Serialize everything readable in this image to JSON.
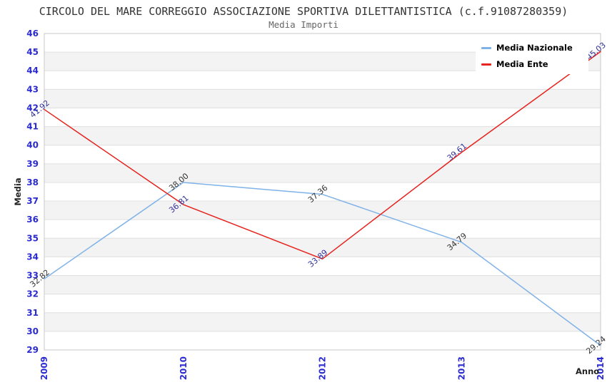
{
  "header": {
    "title": "CIRCOLO DEL MARE CORREGGIO ASSOCIAZIONE SPORTIVA DILETTANTISTICA (c.f.91087280359)",
    "subtitle": "Media Importi"
  },
  "chart_data": {
    "type": "line",
    "categories": [
      "2009",
      "2010",
      "2012",
      "2013",
      "2014"
    ],
    "series": [
      {
        "name": "Media Nazionale",
        "color": "#7fb2e8",
        "label_color": "#333333",
        "values": [
          32.82,
          38.0,
          37.36,
          34.79,
          29.24
        ]
      },
      {
        "name": "Media Ente",
        "color": "#e6231e",
        "label_color": "#333399",
        "values": [
          41.92,
          36.81,
          33.89,
          39.61,
          45.03
        ]
      }
    ],
    "xlabel": "Anno",
    "ylabel": "Media",
    "ylim": [
      29,
      46
    ],
    "ytick_step": 1,
    "grid": true,
    "legend_position": "top-right",
    "band_colors": [
      "#ffffff",
      "#f3f3f3"
    ],
    "grid_color": "#e0e0e0",
    "border_color": "#c9c9c9",
    "axis_label_color": "#2b2bd0"
  }
}
